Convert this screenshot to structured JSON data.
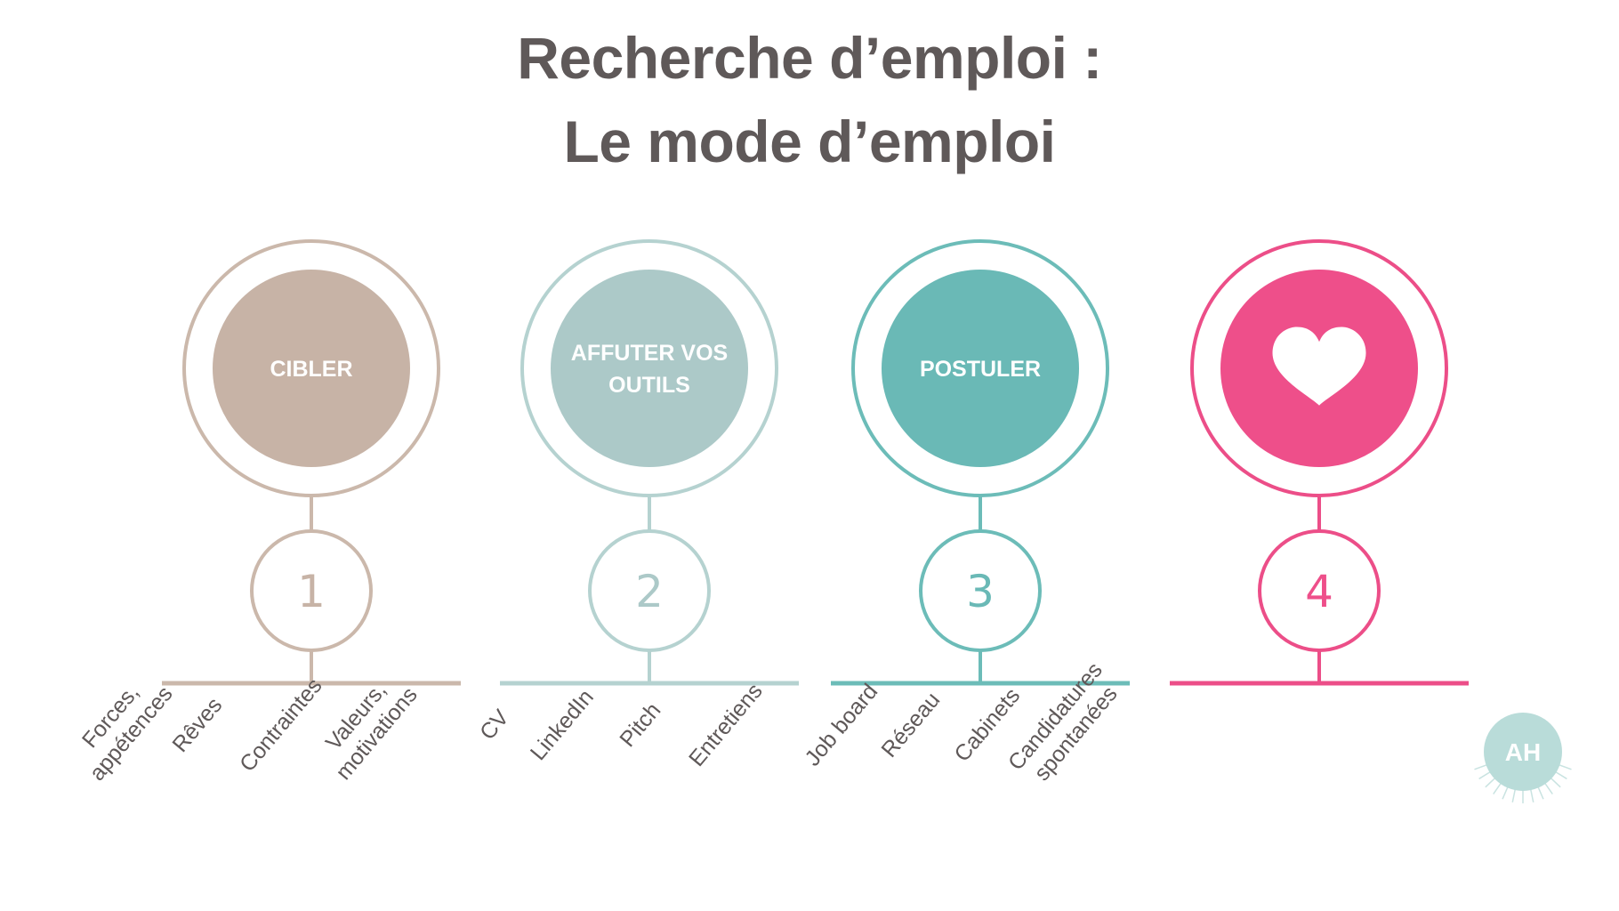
{
  "title": {
    "line1": "Recherche d’emploi :",
    "line2": "Le mode d’emploi"
  },
  "steps": [
    {
      "label_lines": [
        "CIBLER"
      ],
      "number": "1",
      "color": "#c7b3a6",
      "ring_color": "#cbb8ab",
      "items": [
        [
          "Forces,",
          "appétences"
        ],
        [
          "Rêves"
        ],
        [
          "Contraintes"
        ],
        [
          "Valeurs,",
          "motivations"
        ]
      ]
    },
    {
      "label_lines": [
        "AFFUTER VOS",
        "OUTILS"
      ],
      "number": "2",
      "color": "#acc9c8",
      "ring_color": "#b5d2d0",
      "items": [
        [
          "CV"
        ],
        [
          "LinkedIn"
        ],
        [
          "Pitch"
        ],
        [
          "Entretiens"
        ]
      ]
    },
    {
      "label_lines": [
        "POSTULER"
      ],
      "number": "3",
      "color": "#6ab9b6",
      "ring_color": "#6cbcb8",
      "items": [
        [
          "Job board"
        ],
        [
          "Réseau"
        ],
        [
          "Cabinets"
        ],
        [
          "Candidatures",
          "spontanées"
        ]
      ]
    },
    {
      "label_lines": [],
      "icon": "heart-icon",
      "number": "4",
      "color": "#ee4f8a",
      "ring_color": "#ec4e88",
      "items": []
    }
  ],
  "logo": {
    "text": "AH",
    "color": "#b9dcd9"
  },
  "text_color": "#5f5959"
}
